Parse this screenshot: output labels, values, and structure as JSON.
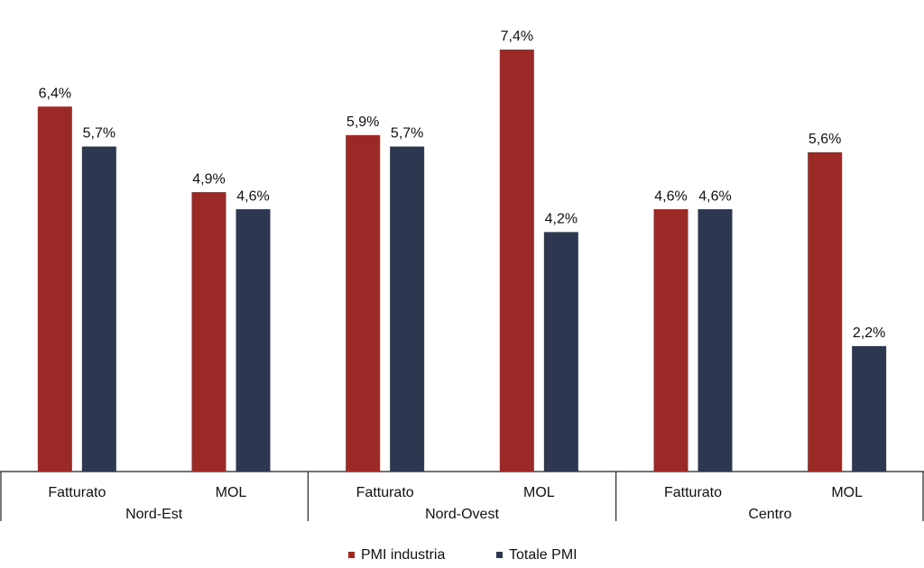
{
  "chart_data": {
    "type": "grouped-bar",
    "categories": [
      "Fatturato",
      "MOL",
      "Fatturato",
      "MOL",
      "Fatturato",
      "MOL"
    ],
    "groups": [
      "Nord-Est",
      "Nord-Ovest",
      "Centro"
    ],
    "series": [
      {
        "name": "PMI industria",
        "color": "#9b2a27",
        "values": [
          6.4,
          4.9,
          5.9,
          7.4,
          4.6,
          5.6
        ],
        "value_labels": [
          "6,4%",
          "4,9%",
          "5,9%",
          "7,4%",
          "4,6%",
          "5,6%"
        ]
      },
      {
        "name": "Totale PMI",
        "color": "#2d3850",
        "values": [
          5.7,
          4.6,
          5.7,
          4.2,
          4.6,
          2.2
        ],
        "value_labels": [
          "5,7%",
          "4,6%",
          "5,7%",
          "4,2%",
          "4,6%",
          "2,2%"
        ]
      }
    ]
  }
}
